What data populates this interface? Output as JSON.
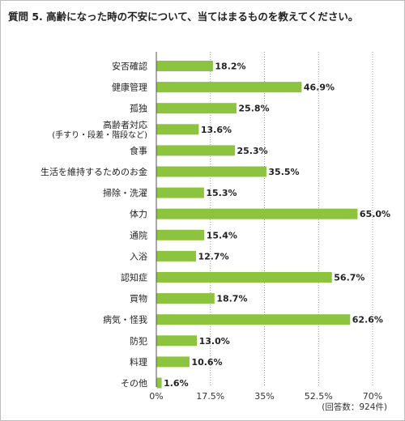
{
  "title": "質問 5. 高齢になった時の不安について、当てはまるものを教えてください。",
  "note": "(回答数：924件)",
  "colors": {
    "bar": "#8dc43f",
    "grid": "#9a9a9a",
    "axis": "#555555"
  },
  "chart_data": {
    "type": "bar",
    "orientation": "horizontal",
    "title": "質問 5. 高齢になった時の不安について、当てはまるものを教えてください。",
    "categories": [
      "安否確認",
      "健康管理",
      "孤独",
      "高齢者対応",
      "食事",
      "生活を維持するためのお金",
      "掃除・洗濯",
      "体力",
      "通院",
      "入浴",
      "認知症",
      "買物",
      "病気・怪我",
      "防犯",
      "料理",
      "その他"
    ],
    "category_sublabels": {
      "3": "(手すり・段差・階段など)"
    },
    "values": [
      18.2,
      46.9,
      25.8,
      13.6,
      25.3,
      35.5,
      15.3,
      65.0,
      15.4,
      12.7,
      56.7,
      18.7,
      62.6,
      13.0,
      10.6,
      1.6
    ],
    "value_labels": [
      "18.2%",
      "46.9%",
      "25.8%",
      "13.6%",
      "25.3%",
      "35.5%",
      "15.3%",
      "65.0%",
      "15.4%",
      "12.7%",
      "56.7%",
      "18.7%",
      "62.6%",
      "13.0%",
      "10.6%",
      "1.6%"
    ],
    "xlim": [
      0,
      70
    ],
    "xticks": [
      0,
      17.5,
      35,
      52.5,
      70
    ],
    "xtick_labels": [
      "0%",
      "17.5%",
      "35%",
      "52.5%",
      "70%"
    ],
    "grid": true,
    "grid_style": "dotted vertical"
  }
}
